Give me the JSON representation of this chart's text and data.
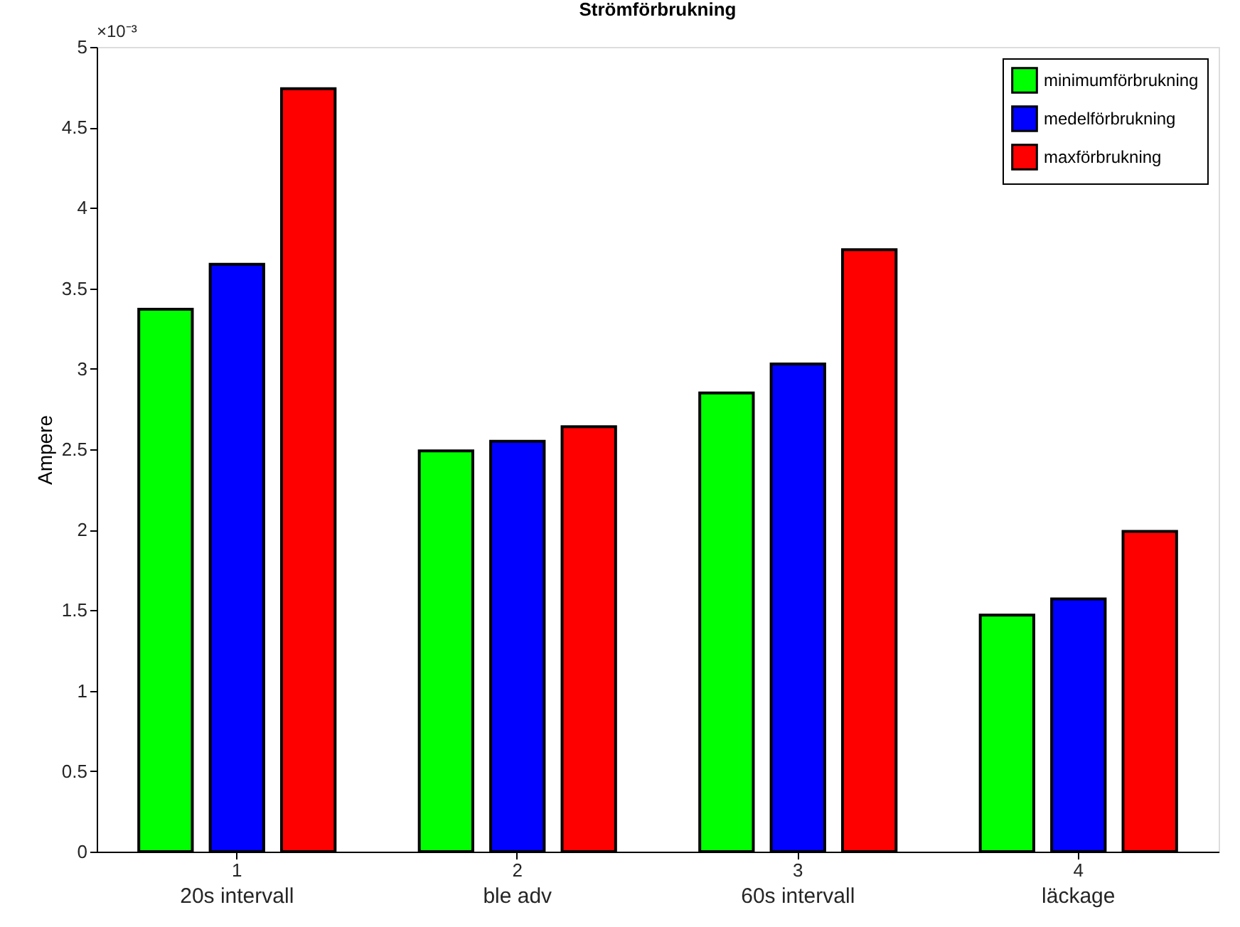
{
  "chart_data": {
    "type": "bar",
    "title": "Strömförbrukning",
    "ylabel": "Ampere",
    "categories": [
      "1",
      "2",
      "3",
      "4"
    ],
    "series": [
      {
        "name": "minimumförbrukning",
        "color": "#00ff00",
        "values": [
          3.37,
          2.49,
          2.85,
          1.47
        ]
      },
      {
        "name": "medelförbrukning",
        "color": "#0000ff",
        "values": [
          3.65,
          2.55,
          3.03,
          1.57
        ]
      },
      {
        "name": "maxförbrukning",
        "color": "#ff0000",
        "values": [
          4.74,
          2.64,
          3.74,
          1.99
        ]
      }
    ],
    "ylim": [
      0,
      5
    ],
    "yticks": [
      0,
      0.5,
      1,
      1.5,
      2,
      2.5,
      3,
      3.5,
      4,
      4.5,
      5
    ],
    "annotations": [
      "×10⁻³",
      "20s intervall",
      "ble adv",
      "60s intervall",
      "läckage"
    ],
    "legend": "top right",
    "grid": false
  }
}
